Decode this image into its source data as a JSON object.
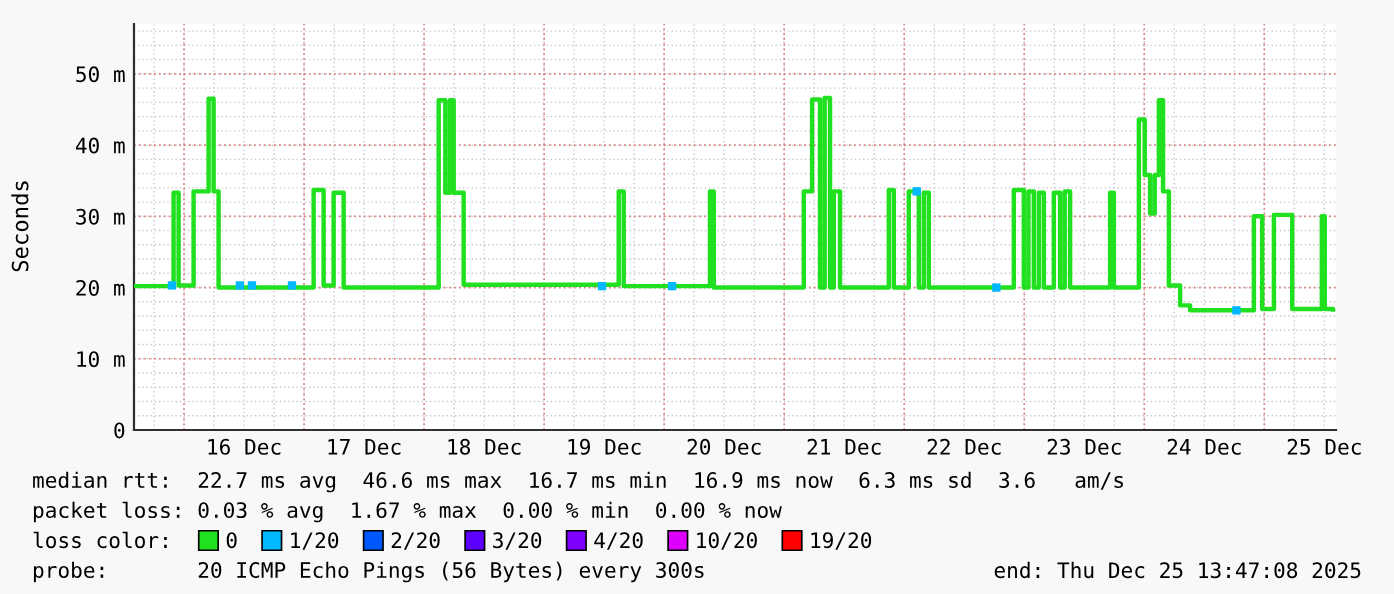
{
  "chart_data": {
    "type": "step",
    "ylabel": "Seconds",
    "legend_title": "loss color:",
    "legend": "bottom",
    "grid": true,
    "xlim": [
      "2025-12-15T14:00",
      "2025-12-25T14:20"
    ],
    "xticks": [
      {
        "value": "2025-12-16T12:00",
        "label": "16 Dec"
      },
      {
        "value": "2025-12-17T12:00",
        "label": "17 Dec"
      },
      {
        "value": "2025-12-18T12:00",
        "label": "18 Dec"
      },
      {
        "value": "2025-12-19T12:00",
        "label": "19 Dec"
      },
      {
        "value": "2025-12-20T12:00",
        "label": "20 Dec"
      },
      {
        "value": "2025-12-21T12:00",
        "label": "21 Dec"
      },
      {
        "value": "2025-12-22T12:00",
        "label": "22 Dec"
      },
      {
        "value": "2025-12-23T12:00",
        "label": "23 Dec"
      },
      {
        "value": "2025-12-24T12:00",
        "label": "24 Dec"
      },
      {
        "value": "2025-12-25T12:00",
        "label": "25 Dec"
      }
    ],
    "ylim": [
      0,
      57
    ],
    "yticks": [
      0,
      {
        "value": 10,
        "label": "10 m"
      },
      {
        "value": 20,
        "label": "20 m"
      },
      {
        "value": 30,
        "label": "30 m"
      },
      {
        "value": 40,
        "label": "40 m"
      },
      {
        "value": 50,
        "label": "50 m"
      }
    ],
    "series": [
      {
        "name": "0",
        "color": "#20e020",
        "x": [
          "2025-12-15T14:00",
          "2025-12-15T21:55",
          "2025-12-15T22:55",
          "2025-12-16T01:55",
          "2025-12-16T04:55",
          "2025-12-16T05:55",
          "2025-12-16T06:55",
          "2025-12-17T01:55",
          "2025-12-17T03:55",
          "2025-12-17T05:55",
          "2025-12-17T07:55",
          "2025-12-18T02:55",
          "2025-12-18T04:15",
          "2025-12-18T05:10",
          "2025-12-18T05:55",
          "2025-12-18T07:55",
          "2025-12-19T14:55",
          "2025-12-19T15:55",
          "2025-12-20T09:10",
          "2025-12-20T09:55",
          "2025-12-21T03:55",
          "2025-12-21T05:35",
          "2025-12-21T07:10",
          "2025-12-21T08:05",
          "2025-12-21T09:10",
          "2025-12-21T09:55",
          "2025-12-21T11:10",
          "2025-12-21T20:55",
          "2025-12-21T21:55",
          "2025-12-22T00:55",
          "2025-12-22T02:55",
          "2025-12-22T03:55",
          "2025-12-22T04:55",
          "2025-12-22T21:55",
          "2025-12-22T23:55",
          "2025-12-23T00:50",
          "2025-12-23T01:55",
          "2025-12-23T02:55",
          "2025-12-23T03:55",
          "2025-12-23T05:55",
          "2025-12-23T07:10",
          "2025-12-23T08:05",
          "2025-12-23T09:10",
          "2025-12-23T17:10",
          "2025-12-23T17:55",
          "2025-12-23T22:55",
          "2025-12-24T00:05",
          "2025-12-24T01:10",
          "2025-12-24T02:05",
          "2025-12-24T02:55",
          "2025-12-24T03:45",
          "2025-12-24T04:55",
          "2025-12-24T07:10",
          "2025-12-24T09:10",
          "2025-12-24T21:55",
          "2025-12-24T23:35",
          "2025-12-25T01:55",
          "2025-12-25T05:35",
          "2025-12-25T11:30",
          "2025-12-25T12:05",
          "2025-12-25T13:45"
        ],
        "values": [
          20.2,
          33.3,
          20.3,
          33.5,
          46.5,
          33.5,
          20.0,
          33.7,
          20.3,
          33.3,
          20.0,
          46.3,
          33.3,
          46.3,
          33.3,
          20.4,
          33.5,
          20.2,
          33.5,
          20.0,
          33.5,
          46.4,
          20.0,
          46.6,
          20.0,
          33.5,
          20.0,
          33.7,
          20.0,
          33.5,
          20.0,
          33.3,
          20.0,
          33.7,
          20.0,
          33.5,
          20.0,
          33.3,
          20.0,
          33.3,
          20.0,
          33.5,
          20.0,
          33.3,
          20.0,
          43.6,
          35.8,
          30.4,
          35.8,
          46.3,
          33.5,
          20.3,
          17.5,
          16.8,
          30.0,
          17.0,
          30.2,
          17.0,
          30.0,
          17.0,
          16.9
        ]
      },
      {
        "name": "1/20",
        "color": "#00b8ff",
        "type": "scatter",
        "marker": "square",
        "x": [
          "2025-12-15T21:35",
          "2025-12-16T11:10",
          "2025-12-16T13:35",
          "2025-12-16T21:35",
          "2025-12-19T11:35",
          "2025-12-20T01:35",
          "2025-12-22T02:30",
          "2025-12-22T18:25",
          "2025-12-24T18:25"
        ],
        "values": [
          20.3,
          20.3,
          20.3,
          20.3,
          20.2,
          20.2,
          33.5,
          20.0,
          16.8
        ]
      },
      {
        "name": "2/20",
        "color": "#0059ff",
        "type": "scatter",
        "marker": "square"
      },
      {
        "name": "3/20",
        "color": "#5e00ff",
        "type": "scatter",
        "marker": "square"
      },
      {
        "name": "4/20",
        "color": "#7e00ff",
        "type": "scatter",
        "marker": "square"
      },
      {
        "name": "10/20",
        "color": "#dd00ff",
        "type": "scatter",
        "marker": "square"
      },
      {
        "name": "19/20",
        "color": "#ff0000",
        "type": "scatter",
        "marker": "square"
      }
    ],
    "annotations": [
      "median rtt:  22.7 ms avg  46.6 ms max  16.7 ms min  16.9 ms now  6.3 ms sd  3.6   am/s",
      "packet loss: 0.03 % avg  1.67 % max  0.00 % min  0.00 % now",
      "probe:       20 ICMP Echo Pings (56 Bytes) every 300s",
      "end: Thu Dec 25 13:47:08 2025"
    ]
  }
}
